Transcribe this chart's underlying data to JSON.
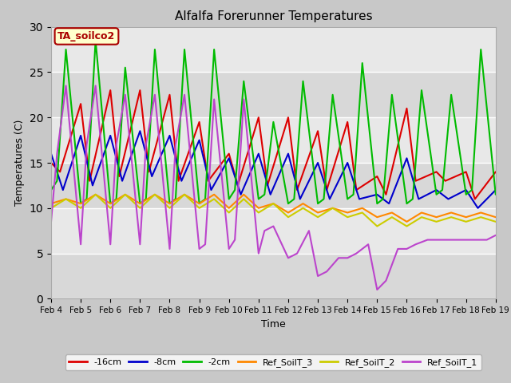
{
  "title": "Alfalfa Forerunner Temperatures",
  "xlabel": "Time",
  "ylabel": "Temperatures (C)",
  "annotation_text": "TA_soilco2",
  "annotation_color": "#aa0000",
  "annotation_bg": "#ffffcc",
  "annotation_border": "#aa0000",
  "ylim": [
    0,
    30
  ],
  "yticks": [
    0,
    5,
    10,
    15,
    20,
    25,
    30
  ],
  "fig_bg": "#c8c8c8",
  "axes_bg": "#e8e8e8",
  "grid_color": "#ffffff",
  "series_colors": {
    "-16cm": "#dd0000",
    "-8cm": "#0000cc",
    "-2cm": "#00bb00",
    "Ref_SoilT_3": "#ff8800",
    "Ref_SoilT_2": "#cccc00",
    "Ref_SoilT_1": "#bb44cc"
  },
  "x_tick_labels": [
    "Feb 4",
    "Feb 5",
    "Feb 6",
    "Feb 7",
    "Feb 8",
    "Feb 9",
    "Feb 10",
    "Feb 11",
    "Feb 12",
    "Feb 13",
    "Feb 14",
    "Feb 15",
    "Feb 16",
    "Feb 17",
    "Feb 18",
    "Feb 19"
  ],
  "r16_x": [
    0,
    0.3,
    1,
    1.3,
    2,
    2.3,
    3,
    3.3,
    4,
    4.3,
    5,
    5.3,
    6,
    6.3,
    7,
    7.3,
    8,
    8.3,
    9,
    9.3,
    10,
    10.3,
    11,
    11.3,
    12,
    12.3,
    13,
    13.3,
    14,
    14.3,
    15
  ],
  "r16_y": [
    15.0,
    14.0,
    21.5,
    13.0,
    23.0,
    13.5,
    23.0,
    14.0,
    22.5,
    13.0,
    19.5,
    13.0,
    16.0,
    12.5,
    20.0,
    12.5,
    20.0,
    12.0,
    18.5,
    12.0,
    19.5,
    12.0,
    13.5,
    11.5,
    21.0,
    13.0,
    14.0,
    13.0,
    14.0,
    11.0,
    14.0
  ],
  "r8_x": [
    0,
    0.4,
    1,
    1.4,
    2,
    2.4,
    3,
    3.4,
    4,
    4.4,
    5,
    5.4,
    6,
    6.4,
    7,
    7.4,
    8,
    8.4,
    9,
    9.4,
    10,
    10.4,
    11,
    11.4,
    12,
    12.4,
    13,
    13.4,
    14,
    14.4,
    15
  ],
  "r8_y": [
    16.0,
    12.0,
    18.0,
    12.5,
    18.0,
    13.0,
    18.5,
    13.5,
    18.0,
    13.0,
    17.5,
    12.0,
    15.5,
    11.5,
    16.0,
    11.5,
    16.0,
    11.0,
    15.0,
    11.0,
    15.0,
    11.0,
    11.5,
    10.5,
    15.5,
    11.0,
    12.0,
    11.0,
    12.0,
    10.0,
    12.0
  ],
  "r2_x": [
    0,
    0.2,
    0.5,
    1,
    1.2,
    1.5,
    2,
    2.2,
    2.5,
    3,
    3.2,
    3.5,
    4,
    4.2,
    4.5,
    5,
    5.2,
    5.5,
    6,
    6.2,
    6.5,
    7,
    7.2,
    7.5,
    8,
    8.2,
    8.5,
    9,
    9.2,
    9.5,
    10,
    10.2,
    10.5,
    11,
    11.2,
    11.5,
    12,
    12.2,
    12.5,
    13,
    13.2,
    13.5,
    14,
    14.2,
    14.5,
    15
  ],
  "r2_y": [
    12.0,
    13.0,
    27.5,
    10.5,
    11.0,
    28.5,
    10.5,
    11.0,
    25.5,
    10.5,
    11.0,
    27.5,
    10.5,
    11.0,
    27.5,
    10.5,
    11.0,
    27.5,
    11.0,
    12.0,
    24.0,
    11.0,
    11.5,
    19.5,
    10.5,
    11.0,
    24.0,
    10.5,
    11.0,
    22.5,
    11.0,
    11.5,
    26.0,
    10.5,
    11.0,
    22.5,
    10.5,
    11.0,
    23.0,
    11.5,
    12.0,
    22.5,
    11.5,
    12.0,
    27.5,
    11.5
  ],
  "ref3_x": [
    0,
    0.5,
    1,
    1.5,
    2,
    2.5,
    3,
    3.5,
    4,
    4.5,
    5,
    5.5,
    6,
    6.5,
    7,
    7.5,
    8,
    8.5,
    9,
    9.5,
    10,
    10.5,
    11,
    11.5,
    12,
    12.5,
    13,
    13.5,
    14,
    14.5,
    15
  ],
  "ref3_y": [
    10.5,
    11.0,
    10.5,
    11.5,
    10.5,
    11.5,
    10.5,
    11.5,
    10.5,
    11.5,
    10.5,
    11.5,
    10.0,
    11.5,
    10.0,
    10.5,
    9.5,
    10.5,
    9.5,
    10.0,
    9.5,
    10.0,
    9.0,
    9.5,
    8.5,
    9.5,
    9.0,
    9.5,
    9.0,
    9.5,
    9.0
  ],
  "ref2_x": [
    0,
    0.5,
    1,
    1.5,
    2,
    2.5,
    3,
    3.5,
    4,
    4.5,
    5,
    5.5,
    6,
    6.5,
    7,
    7.5,
    8,
    8.5,
    9,
    9.5,
    10,
    10.5,
    11,
    11.5,
    12,
    12.5,
    13,
    13.5,
    14,
    14.5,
    15
  ],
  "ref2_y": [
    10.0,
    11.0,
    10.0,
    11.5,
    10.0,
    11.5,
    10.0,
    11.5,
    10.0,
    11.5,
    10.0,
    11.0,
    9.5,
    11.0,
    9.5,
    10.5,
    9.0,
    10.0,
    9.0,
    10.0,
    9.0,
    9.5,
    8.0,
    9.0,
    8.0,
    9.0,
    8.5,
    9.0,
    8.5,
    9.0,
    8.5
  ],
  "ref1_x": [
    0,
    0.2,
    0.5,
    1,
    1.2,
    1.5,
    2,
    2.2,
    2.5,
    3,
    3.2,
    3.5,
    4,
    4.2,
    4.5,
    5,
    5.2,
    5.5,
    6,
    6.2,
    6.5,
    7,
    7.2,
    7.5,
    8,
    8.3,
    8.7,
    9,
    9.3,
    9.7,
    10,
    10.3,
    10.7,
    11,
    11.3,
    11.7,
    12,
    12.3,
    12.7,
    13,
    13.3,
    13.7,
    14,
    14.3,
    14.7,
    15
  ],
  "ref1_y": [
    8.5,
    16.0,
    23.5,
    6.0,
    17.0,
    23.5,
    6.0,
    17.0,
    22.5,
    6.0,
    17.0,
    22.5,
    5.5,
    17.0,
    22.5,
    5.5,
    6.0,
    22.0,
    5.5,
    6.5,
    22.0,
    5.0,
    7.5,
    8.0,
    4.5,
    5.0,
    7.5,
    2.5,
    3.0,
    4.5,
    4.5,
    5.0,
    6.0,
    1.0,
    2.0,
    5.5,
    5.5,
    6.0,
    6.5,
    6.5,
    6.5,
    6.5,
    6.5,
    6.5,
    6.5,
    7.0
  ]
}
